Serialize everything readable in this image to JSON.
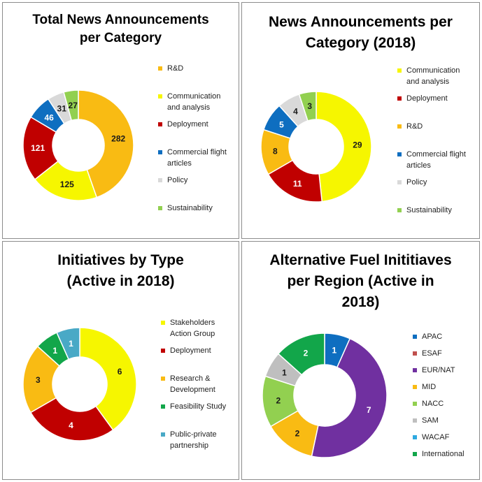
{
  "chart_data": [
    {
      "type": "pie",
      "variant": "donut",
      "title": [
        "Total News Announcements",
        "per Category"
      ],
      "categories": [
        "R&D",
        "Communication and analysis",
        "Deployment",
        "Commercial flight articles",
        "Policy",
        "Sustainability"
      ],
      "values": [
        282,
        125,
        121,
        46,
        31,
        27
      ],
      "colors": [
        "#f9bb13",
        "#f6f600",
        "#c00000",
        "#0e6ec0",
        "#d9d9d9",
        "#92d050"
      ],
      "legend_position": "right"
    },
    {
      "type": "pie",
      "variant": "donut",
      "title": [
        "News Announcements per",
        "Category (2018)"
      ],
      "categories": [
        "Communication and analysis",
        "Deployment",
        "R&D",
        "Commercial flight articles",
        "Policy",
        "Sustainability"
      ],
      "values": [
        29,
        11,
        8,
        5,
        4,
        3
      ],
      "colors": [
        "#f6f600",
        "#c00000",
        "#f9bb13",
        "#0e6ec0",
        "#d9d9d9",
        "#92d050"
      ],
      "legend_position": "right"
    },
    {
      "type": "pie",
      "variant": "donut",
      "title": [
        "Initiatives by Type",
        "(Active in 2018)"
      ],
      "categories": [
        "Stakeholders Action Group",
        "Deployment",
        "Research & Development",
        "Feasibility Study",
        "Public-private partnership"
      ],
      "values": [
        6,
        4,
        3,
        1,
        1
      ],
      "colors": [
        "#f6f600",
        "#c00000",
        "#f9bb13",
        "#12a64a",
        "#49a9c6"
      ],
      "legend_position": "right"
    },
    {
      "type": "pie",
      "variant": "donut",
      "title": [
        "Alternative Fuel Inititiaves",
        "per Region (Active in",
        "2018)"
      ],
      "categories": [
        "APAC",
        "ESAF",
        "EUR/NAT",
        "MID",
        "NACC",
        "SAM",
        "WACAF",
        "International"
      ],
      "values": [
        1,
        0,
        7,
        2,
        2,
        1,
        0,
        2
      ],
      "colors": [
        "#0e6ec0",
        "#c0504d",
        "#7030a0",
        "#f9bb13",
        "#92d050",
        "#bfbfbf",
        "#2ea9e0",
        "#12a64a"
      ],
      "legend_position": "right"
    }
  ]
}
